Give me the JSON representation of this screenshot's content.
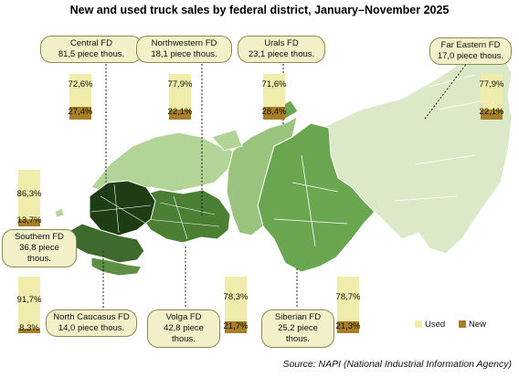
{
  "title": "New and used truck sales by federal district, January–November 2025",
  "source": "Source: NAPI (National Industrial Information Agency)",
  "legend": {
    "used": "Used",
    "new": "New"
  },
  "colors": {
    "used": "#f0ecac",
    "new": "#a67f28"
  },
  "districts": [
    {
      "id": "central",
      "name": "Central FD",
      "sales": "81,5 piece thous.",
      "used_label": "72,6%",
      "new_label": "27,4%",
      "used": 72.6,
      "new": 27.4
    },
    {
      "id": "northwestern",
      "name": "Northwestern FD",
      "sales": "18,1 piece thous.",
      "used_label": "77,9%",
      "new_label": "22,1%",
      "used": 77.9,
      "new": 22.1
    },
    {
      "id": "urals",
      "name": "Urals FD",
      "sales": "23,1 piece thous.",
      "used_label": "71,6%",
      "new_label": "28,4%",
      "used": 71.6,
      "new": 28.4
    },
    {
      "id": "far_eastern",
      "name": "Far Eastern FD",
      "sales": "17,0 piece thous.",
      "used_label": "77,9%",
      "new_label": "22,1%",
      "used": 77.9,
      "new": 22.1
    },
    {
      "id": "southern",
      "name": "Southern FD",
      "sales": "36,8 piece thous.",
      "used_label": "86,3%",
      "new_label": "13,7%",
      "used": 86.3,
      "new": 13.7
    },
    {
      "id": "north_caucasus",
      "name": "North Caucasus FD",
      "sales": "14,0 piece thous.",
      "used_label": "91,7%",
      "new_label": "8,3%",
      "used": 91.7,
      "new": 8.3
    },
    {
      "id": "volga",
      "name": "Volga FD",
      "sales": "42,8 piece thous.",
      "used_label": "78,3%",
      "new_label": "21,7%",
      "used": 78.3,
      "new": 21.7
    },
    {
      "id": "siberian",
      "name": "Siberian FD",
      "sales": "25,2 piece thous.",
      "used_label": "78,7%",
      "new_label": "21,3%",
      "used": 78.7,
      "new": 21.3
    }
  ]
}
